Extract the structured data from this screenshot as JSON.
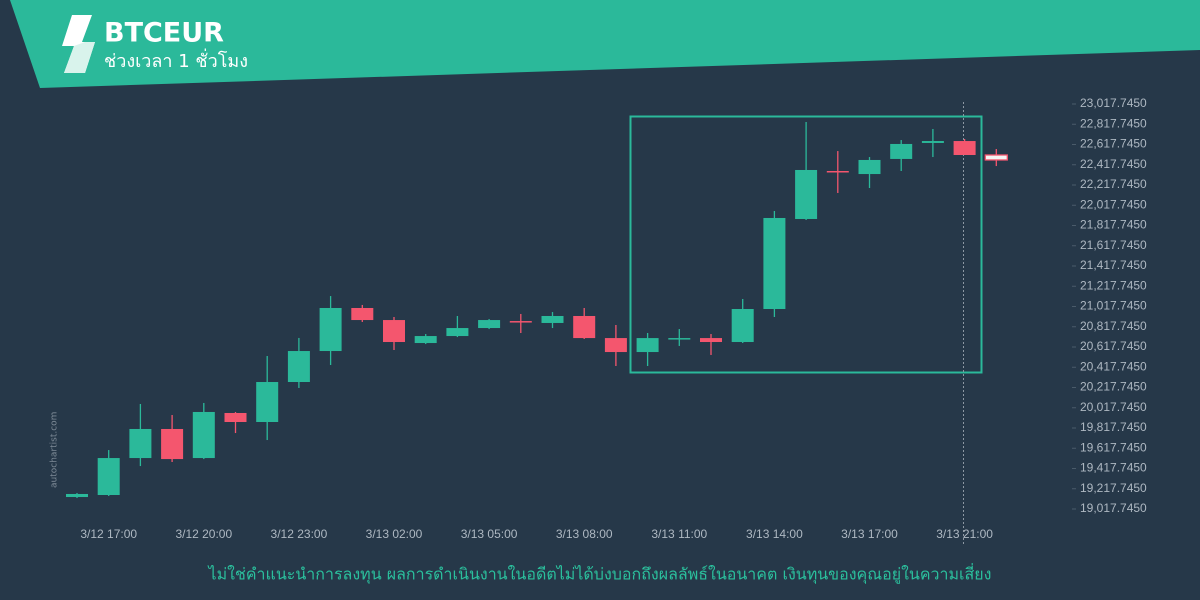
{
  "chart_data": {
    "type": "candlestick",
    "title": "BTCEUR",
    "subtitle": "ช่วงเวลา 1 ชั่วโมง",
    "categories": [
      null,
      "3/12 17:00",
      null,
      null,
      "3/12 20:00",
      null,
      null,
      "3/12 23:00",
      null,
      null,
      "3/13 02:00",
      null,
      null,
      "3/13 05:00",
      null,
      null,
      "3/13 08:00",
      null,
      null,
      "3/13 11:00",
      null,
      null,
      "3/13 14:00",
      null,
      null,
      "3/13 17:00",
      null,
      null,
      "3/13 21:00",
      null
    ],
    "open": [
      19136,
      19156,
      19521,
      19808,
      19521,
      19966,
      19877,
      20272,
      20578,
      21003,
      20884,
      20657,
      20726,
      20805,
      20874,
      20855,
      20924,
      20706,
      20568,
      20697,
      20706,
      20667,
      20993,
      21882,
      22356,
      22326,
      22475,
      22633,
      22652,
      22514
    ],
    "high": [
      19176,
      19600,
      20055,
      19946,
      20065,
      19976,
      20529,
      20707,
      21121,
      21033,
      20914,
      20746,
      20924,
      20894,
      20944,
      20963,
      21003,
      20835,
      20756,
      20795,
      20746,
      21092,
      21961,
      22840,
      22553,
      22494,
      22662,
      22771,
      22672,
      22573
    ],
    "low": [
      19126,
      19146,
      19442,
      19482,
      19511,
      19768,
      19699,
      20213,
      20440,
      20865,
      20588,
      20647,
      20716,
      20795,
      20756,
      20805,
      20697,
      20430,
      20430,
      20628,
      20539,
      20657,
      20914,
      21872,
      22139,
      22188,
      22356,
      22494,
      22514,
      22405
    ],
    "close": [
      19166,
      19521,
      19808,
      19511,
      19976,
      19877,
      20272,
      20578,
      21003,
      20884,
      20667,
      20726,
      20805,
      20884,
      20865,
      20924,
      20706,
      20568,
      20706,
      20706,
      20667,
      20993,
      21892,
      22366,
      22346,
      22465,
      22623,
      22652,
      22514,
      22465
    ],
    "up_color": "#2bb99a",
    "down_color": "#f4566e",
    "ylim": [
      19017.745,
      23017.745
    ],
    "yticks": [
      {
        "value": 23017.745,
        "label": "23,017.7450"
      },
      {
        "value": 22817.745,
        "label": "22,817.7450"
      },
      {
        "value": 22617.745,
        "label": "22,617.7450"
      },
      {
        "value": 22417.745,
        "label": "22,417.7450"
      },
      {
        "value": 22217.745,
        "label": "22,217.7450"
      },
      {
        "value": 22017.745,
        "label": "22,017.7450"
      },
      {
        "value": 21817.745,
        "label": "21,817.7450"
      },
      {
        "value": 21617.745,
        "label": "21,617.7450"
      },
      {
        "value": 21417.745,
        "label": "21,417.7450"
      },
      {
        "value": 21217.745,
        "label": "21,217.7450"
      },
      {
        "value": 21017.745,
        "label": "21,017.7450"
      },
      {
        "value": 20817.745,
        "label": "20,817.7450"
      },
      {
        "value": 20617.745,
        "label": "20,617.7450"
      },
      {
        "value": 20417.745,
        "label": "20,417.7450"
      },
      {
        "value": 20217.745,
        "label": "20,217.7450"
      },
      {
        "value": 20017.745,
        "label": "20,017.7450"
      },
      {
        "value": 19817.745,
        "label": "19,817.7450"
      },
      {
        "value": 19617.745,
        "label": "19,617.7450"
      },
      {
        "value": 19417.745,
        "label": "19,417.7450"
      },
      {
        "value": 19217.745,
        "label": "19,217.7450"
      },
      {
        "value": 19017.745,
        "label": "19,017.7450"
      }
    ],
    "grid": false
  },
  "watermark": "autochartist.com",
  "disclaimer": "ไม่ใช่คำแนะนำการลงทุน ผลการดำเนินงานในอดีตไม่ได้บ่งบอกถึงผลลัพธ์ในอนาคต เงินทุนของคุณอยู่ในความเสี่ยง"
}
